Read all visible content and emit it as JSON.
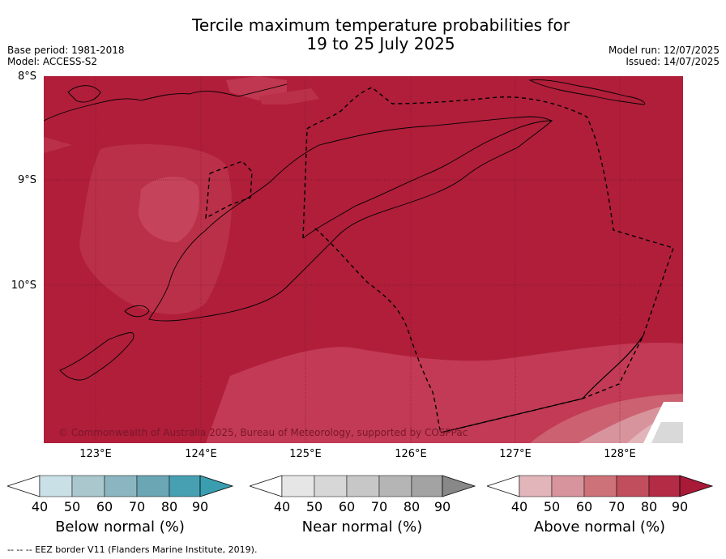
{
  "header": {
    "title_line1": "Tercile maximum temperature probabilities for",
    "title_line2": "19 to 25 July 2025",
    "base_period": "Base period: 1981-2018",
    "model": "Model: ACCESS-S2",
    "model_run": "Model run: 12/07/2025",
    "issued": "Issued: 14/07/2025"
  },
  "map": {
    "lat_labels": [
      "8°S",
      "9°S",
      "10°S"
    ],
    "lon_labels": [
      "123°E",
      "124°E",
      "125°E",
      "126°E",
      "127°E",
      "128°E"
    ],
    "copyright": "© Commonwealth of Australia 2025, Bureau of Meteorology, supported by COSPPac",
    "colors": {
      "above_90": "#b01e3a",
      "above_80": "#c23a55",
      "above_70": "#cc6171",
      "above_60": "#d89098",
      "above_50": "#e2b5bb",
      "near": "#d9d9d9"
    }
  },
  "legends": [
    {
      "label": "Below normal (%)",
      "ticks": [
        "40",
        "50",
        "60",
        "70",
        "80",
        "90"
      ],
      "colors": [
        "#ffffff",
        "#c9e0e6",
        "#a9c7cd",
        "#8bb6c1",
        "#6aa6b4",
        "#47a0b1",
        "#3a9eb0"
      ]
    },
    {
      "label": "Near normal (%)",
      "ticks": [
        "40",
        "50",
        "60",
        "70",
        "80",
        "90"
      ],
      "colors": [
        "#ffffff",
        "#e6e6e6",
        "#d7d7d7",
        "#c7c7c7",
        "#b5b5b5",
        "#a3a3a3",
        "#888888"
      ]
    },
    {
      "label": "Above normal (%)",
      "ticks": [
        "40",
        "50",
        "60",
        "70",
        "80",
        "90"
      ],
      "colors": [
        "#ffffff",
        "#e2b5bb",
        "#d8949c",
        "#cc7278",
        "#c04e5c",
        "#b32b44",
        "#a81a38"
      ]
    }
  ],
  "footer": "--  --  -- EEZ border V11 (Flanders Marine Institute, 2019)."
}
